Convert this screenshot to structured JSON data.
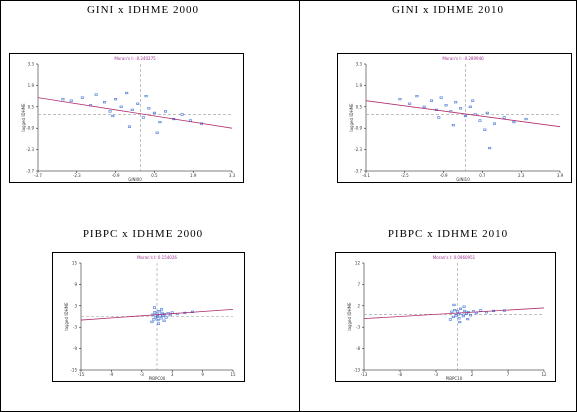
{
  "chart_data": [
    {
      "type": "scatter",
      "title": "GINI x IDHME 2000",
      "subtitle": "Moran's I: -0.240275",
      "xlabel": "GINI00",
      "ylabel": "lagged IDHME",
      "xlim": [
        -3.7,
        3.3
      ],
      "ylim": [
        -3.7,
        3.3
      ],
      "xticks": [
        -3.7,
        -2.3,
        -0.9,
        0.5,
        1.9,
        3.3
      ],
      "yticks": [
        -3.7,
        -2.3,
        -0.9,
        0.5,
        1.9,
        3.3
      ],
      "color": "#3b6fd6",
      "x": [
        -2.5,
        -2.1,
        -1.8,
        -1.6,
        -1.3,
        -1.1,
        -0.9,
        -0.7,
        -0.5,
        -0.3,
        -0.1,
        0.1,
        0.3,
        0.5,
        0.7,
        0.9,
        1.2,
        1.5,
        1.8,
        2.2,
        -1.0,
        -0.4,
        0.2,
        0.6,
        -2.8
      ],
      "values": [
        0.9,
        1.1,
        0.6,
        1.3,
        0.8,
        0.2,
        1.0,
        0.5,
        1.4,
        0.3,
        0.7,
        -0.2,
        0.4,
        0.1,
        -0.5,
        0.2,
        -0.3,
        0.0,
        -0.4,
        -0.6,
        -0.1,
        -0.8,
        1.2,
        -1.2,
        1.0
      ],
      "fit": {
        "color": "#b03070",
        "x": [
          -3.7,
          3.3
        ],
        "values": [
          1.1,
          -0.9
        ]
      }
    },
    {
      "type": "scatter",
      "title": "GINI x IDHME 2010",
      "subtitle": "Moran's I: -0.289946",
      "xlabel": "GINI10",
      "ylabel": "lagged IDHME",
      "xlim": [
        -4.1,
        3.9
      ],
      "ylim": [
        -3.7,
        3.3
      ],
      "xticks": [
        -4.1,
        -2.5,
        -0.9,
        0.7,
        2.3,
        3.9
      ],
      "yticks": [
        -3.7,
        -2.3,
        -0.9,
        0.5,
        1.9,
        3.3
      ],
      "color": "#3b6fd6",
      "x": [
        -2.7,
        -2.3,
        -2.0,
        -1.7,
        -1.4,
        -1.2,
        -1.0,
        -0.8,
        -0.6,
        -0.4,
        -0.2,
        0.0,
        0.2,
        0.4,
        0.6,
        0.9,
        1.2,
        1.6,
        2.0,
        2.5,
        -1.1,
        -0.5,
        0.3,
        0.8,
        1.0
      ],
      "values": [
        1.0,
        0.7,
        1.2,
        0.5,
        0.9,
        0.3,
        1.1,
        0.6,
        0.2,
        0.8,
        0.4,
        -0.1,
        0.5,
        0.0,
        -0.4,
        0.1,
        -0.6,
        -0.2,
        -0.5,
        -0.3,
        -0.2,
        -0.7,
        0.9,
        -1.0,
        -2.2
      ],
      "fit": {
        "color": "#b03070",
        "x": [
          -4.1,
          3.9
        ],
        "values": [
          0.9,
          -0.8
        ]
      }
    },
    {
      "type": "scatter",
      "title": "PIBPC x IDHME 2000",
      "subtitle": "Moran's I: 0.154026",
      "xlabel": "PIBPC00",
      "ylabel": "lagged IDHME",
      "xlim": [
        -15,
        15
      ],
      "ylim": [
        -15,
        15
      ],
      "xticks": [
        -15,
        -9,
        -3,
        3,
        9,
        15
      ],
      "yticks": [
        -15,
        -9,
        -3,
        3,
        9,
        15
      ],
      "color": "#3b6fd6",
      "x": [
        -1.0,
        -0.8,
        -0.6,
        -0.4,
        -0.2,
        0.0,
        0.2,
        0.4,
        0.6,
        0.8,
        1.0,
        1.2,
        1.5,
        1.8,
        2.2,
        2.6,
        3.0,
        4.0,
        5.5,
        7.0,
        -0.5,
        0.3,
        0.9,
        1.4,
        0.1
      ],
      "values": [
        -1.5,
        0.5,
        -0.8,
        1.2,
        -0.2,
        0.8,
        -1.0,
        1.5,
        0.3,
        -0.5,
        1.0,
        0.2,
        0.6,
        -0.3,
        0.9,
        0.4,
        1.1,
        0.7,
        1.0,
        1.3,
        2.5,
        -2.0,
        2.0,
        -1.2,
        0.0
      ],
      "fit": {
        "color": "#b03070",
        "x": [
          -15,
          15
        ],
        "values": [
          -1.0,
          2.0
        ]
      }
    },
    {
      "type": "scatter",
      "title": "PIBPC x IDHME 2010",
      "subtitle": "Moran's I: 0.0960951",
      "xlabel": "PIBPC10",
      "ylabel": "lagged IDHME",
      "xlim": [
        -13,
        12
      ],
      "ylim": [
        -13,
        12
      ],
      "xticks": [
        -13,
        -8,
        -3,
        2,
        7,
        12
      ],
      "yticks": [
        -13,
        -8,
        -3,
        2,
        7,
        12
      ],
      "color": "#3b6fd6",
      "x": [
        -1.0,
        -0.8,
        -0.6,
        -0.4,
        -0.2,
        0.0,
        0.2,
        0.4,
        0.6,
        0.8,
        1.0,
        1.2,
        1.5,
        1.8,
        2.2,
        2.6,
        3.2,
        4.0,
        5.0,
        6.5,
        -0.5,
        0.3,
        0.9,
        1.4,
        0.1
      ],
      "values": [
        -1.2,
        0.6,
        -0.6,
        1.0,
        -0.3,
        0.7,
        -0.9,
        1.3,
        0.2,
        -0.4,
        0.8,
        0.1,
        0.5,
        -0.2,
        0.7,
        0.3,
        0.9,
        0.5,
        0.8,
        0.9,
        2.2,
        -1.8,
        1.8,
        -1.1,
        0.0
      ],
      "fit": {
        "color": "#b03070",
        "x": [
          -13,
          12
        ],
        "values": [
          -1.0,
          1.5
        ]
      }
    }
  ]
}
